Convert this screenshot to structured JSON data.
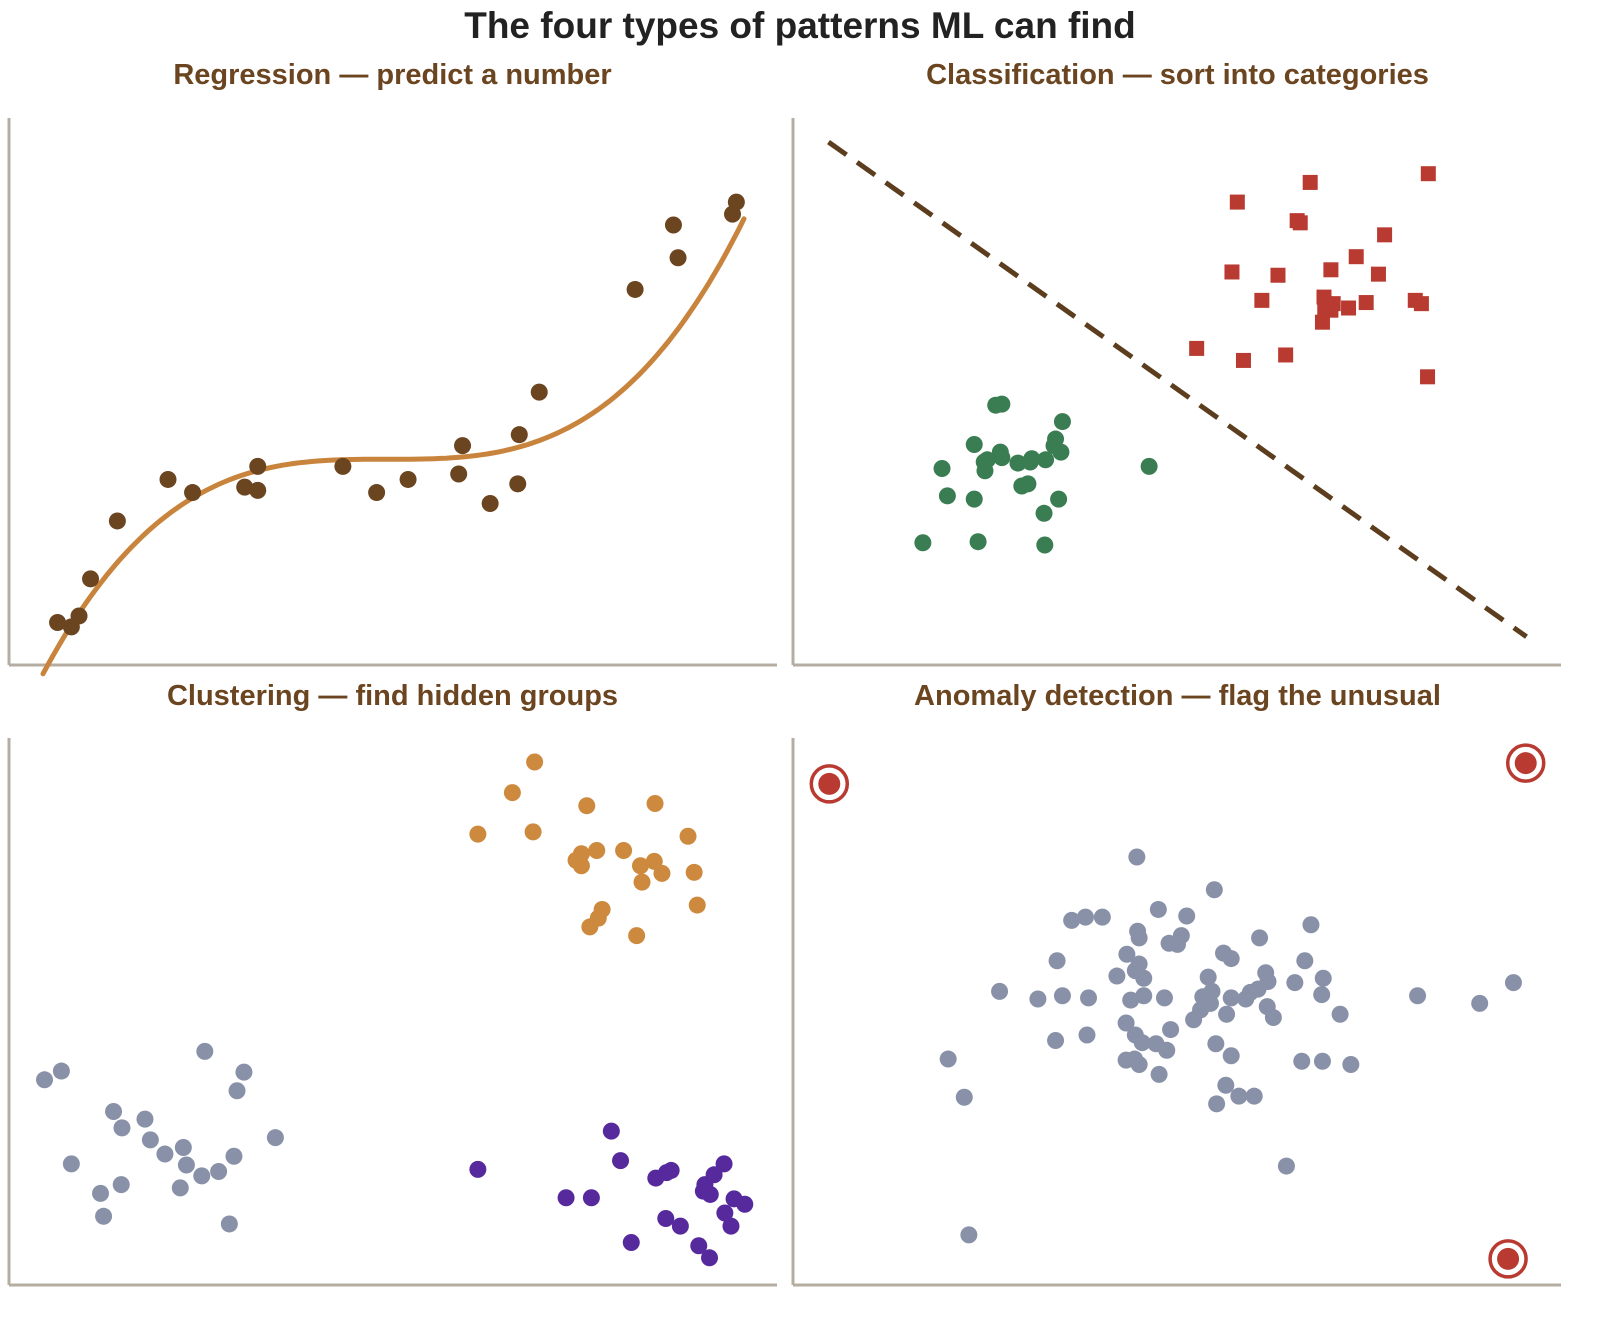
{
  "suptitle": "The four types of patterns ML can find",
  "colors": {
    "axis": "#b5aca2",
    "title_text": "#6b4420",
    "suptitle_text": "#222222",
    "regression_points": "#6b4420",
    "regression_curve": "#c8843c",
    "class_red": "#b83a30",
    "class_green": "#3a7d52",
    "boundary": "#5c3d1e",
    "cluster_gray": "#8891a8",
    "cluster_orange": "#cd8a3e",
    "cluster_purple": "#562a9c",
    "normal": "#8891a8",
    "anomaly": "#b83a30"
  },
  "chart_data": [
    {
      "type": "scatter",
      "title": "Regression — predict a number",
      "xlim": [
        0,
        100
      ],
      "ylim": [
        0,
        100
      ],
      "axis_ticks": false,
      "grid": false,
      "points": [
        [
          6.2,
          7.6
        ],
        [
          8.0,
          6.8
        ],
        [
          9.0,
          8.8
        ],
        [
          10.5,
          15.6
        ],
        [
          14.0,
          26.2
        ],
        [
          20.6,
          33.8
        ],
        [
          23.8,
          31.4
        ],
        [
          30.6,
          32.4
        ],
        [
          32.3,
          31.8
        ],
        [
          32.3,
          36.2
        ],
        [
          43.4,
          36.2
        ],
        [
          47.8,
          31.4
        ],
        [
          51.9,
          33.8
        ],
        [
          58.5,
          34.8
        ],
        [
          59.0,
          40.0
        ],
        [
          62.6,
          29.4
        ],
        [
          66.2,
          33.0
        ],
        [
          66.4,
          42.0
        ],
        [
          69.0,
          49.8
        ],
        [
          81.5,
          68.6
        ],
        [
          86.5,
          80.4
        ],
        [
          87.1,
          74.4
        ],
        [
          94.2,
          82.4
        ],
        [
          94.7,
          84.6
        ]
      ],
      "curve": {
        "x_range": [
          4.3,
          95.7
        ],
        "y_of_t": {
          "baseline": 37.5,
          "cubic_coefficient": 41.5,
          "t_from_x": [
            -0.982,
            1.02
          ]
        }
      }
    },
    {
      "type": "scatter",
      "title": "Classification — sort into categories",
      "xlim": [
        0,
        100
      ],
      "ylim": [
        0,
        100
      ],
      "axis_ticks": false,
      "grid": false,
      "series": [
        {
          "marker": "square",
          "points": [
            [
              57.8,
              84.6
            ],
            [
              67.3,
              88.2
            ],
            [
              65.6,
              81.2
            ],
            [
              66.0,
              80.8
            ],
            [
              82.7,
              89.8
            ],
            [
              77.0,
              78.6
            ],
            [
              57.1,
              71.8
            ],
            [
              63.1,
              71.2
            ],
            [
              70.0,
              72.2
            ],
            [
              73.3,
              74.6
            ],
            [
              76.2,
              71.4
            ],
            [
              61.0,
              66.6
            ],
            [
              69.1,
              67.2
            ],
            [
              69.2,
              65.2
            ],
            [
              70.0,
              64.8
            ],
            [
              70.3,
              66.0
            ],
            [
              72.3,
              65.2
            ],
            [
              74.6,
              66.2
            ],
            [
              81.0,
              66.6
            ],
            [
              81.8,
              66.0
            ],
            [
              68.9,
              62.6
            ],
            [
              52.5,
              57.8
            ],
            [
              58.6,
              55.6
            ],
            [
              64.1,
              56.6
            ],
            [
              82.6,
              52.6
            ]
          ]
        },
        {
          "marker": "circle",
          "points": [
            [
              26.3,
              47.4
            ],
            [
              27.1,
              47.6
            ],
            [
              35.0,
              44.4
            ],
            [
              34.1,
              41.2
            ],
            [
              33.9,
              40.0
            ],
            [
              24.8,
              37.0
            ],
            [
              25.2,
              37.4
            ],
            [
              34.8,
              38.8
            ],
            [
              23.5,
              40.2
            ],
            [
              26.9,
              38.8
            ],
            [
              30.8,
              37.0
            ],
            [
              27.1,
              37.8
            ],
            [
              32.8,
              37.4
            ],
            [
              31.0,
              37.6
            ],
            [
              29.2,
              36.8
            ],
            [
              24.9,
              35.4
            ],
            [
              19.3,
              35.8
            ],
            [
              29.7,
              32.6
            ],
            [
              30.5,
              33.0
            ],
            [
              20.0,
              30.8
            ],
            [
              23.5,
              30.2
            ],
            [
              34.5,
              30.2
            ],
            [
              32.6,
              27.6
            ],
            [
              16.8,
              22.2
            ],
            [
              24.0,
              22.4
            ],
            [
              32.7,
              21.8
            ],
            [
              46.3,
              36.2
            ]
          ]
        }
      ],
      "boundary": {
        "style": "dashed",
        "from": [
          4.5,
          95.6
        ],
        "to": [
          95.5,
          5.0
        ]
      }
    },
    {
      "type": "scatter",
      "title": "Clustering — find hidden groups",
      "xlim": [
        0,
        100
      ],
      "ylim": [
        0,
        100
      ],
      "axis_ticks": false,
      "grid": false,
      "series": [
        {
          "points": [
            [
              4.5,
              37.4
            ],
            [
              6.7,
              39.0
            ],
            [
              25.4,
              42.6
            ],
            [
              30.5,
              38.8
            ],
            [
              29.6,
              35.4
            ],
            [
              13.5,
              31.6
            ],
            [
              17.6,
              30.2
            ],
            [
              14.6,
              28.6
            ],
            [
              18.3,
              26.4
            ],
            [
              22.6,
              25.0
            ],
            [
              8.0,
              22.0
            ],
            [
              20.2,
              23.8
            ],
            [
              29.2,
              23.4
            ],
            [
              34.6,
              26.8
            ],
            [
              23.0,
              21.8
            ],
            [
              25.0,
              19.8
            ],
            [
              27.2,
              20.6
            ],
            [
              14.5,
              18.2
            ],
            [
              22.2,
              17.6
            ],
            [
              11.8,
              16.6
            ],
            [
              12.2,
              12.4
            ],
            [
              28.6,
              11.0
            ]
          ]
        },
        {
          "points": [
            [
              68.4,
              95.6
            ],
            [
              65.5,
              90.0
            ],
            [
              75.2,
              87.6
            ],
            [
              84.1,
              88.0
            ],
            [
              61.0,
              82.4
            ],
            [
              68.2,
              82.8
            ],
            [
              88.4,
              82.0
            ],
            [
              76.5,
              79.4
            ],
            [
              80.0,
              79.4
            ],
            [
              74.5,
              78.8
            ],
            [
              73.8,
              77.6
            ],
            [
              74.5,
              76.6
            ],
            [
              84.0,
              77.4
            ],
            [
              82.2,
              76.6
            ],
            [
              85.0,
              75.2
            ],
            [
              89.2,
              75.4
            ],
            [
              82.4,
              73.6
            ],
            [
              89.6,
              69.4
            ],
            [
              77.2,
              68.6
            ],
            [
              76.7,
              67.0
            ],
            [
              75.6,
              65.4
            ],
            [
              81.7,
              63.8
            ]
          ]
        },
        {
          "points": [
            [
              78.4,
              28.0
            ],
            [
              79.6,
              22.6
            ],
            [
              61.0,
              21.0
            ],
            [
              86.2,
              20.8
            ],
            [
              93.1,
              22.0
            ],
            [
              85.6,
              20.4
            ],
            [
              84.2,
              19.4
            ],
            [
              91.8,
              20.0
            ],
            [
              90.6,
              18.2
            ],
            [
              94.4,
              15.6
            ],
            [
              90.4,
              17.0
            ],
            [
              91.3,
              16.4
            ],
            [
              93.2,
              13.0
            ],
            [
              72.5,
              15.8
            ],
            [
              75.8,
              15.8
            ],
            [
              85.5,
              12.0
            ],
            [
              95.8,
              14.6
            ],
            [
              87.4,
              10.6
            ],
            [
              94.0,
              10.6
            ],
            [
              81.0,
              7.6
            ],
            [
              89.8,
              7.0
            ],
            [
              91.2,
              4.8
            ]
          ]
        }
      ]
    },
    {
      "type": "scatter",
      "title": "Anomaly detection — flag the unusual",
      "xlim": [
        0,
        100
      ],
      "ylim": [
        0,
        100
      ],
      "axis_ticks": false,
      "grid": false,
      "series": [
        {
          "name": "",
          "points": [
            [
              44.7,
              78.2
            ],
            [
              54.8,
              72.2
            ],
            [
              47.5,
              68.6
            ],
            [
              36.2,
              66.6
            ],
            [
              38.0,
              67.2
            ],
            [
              40.2,
              67.2
            ],
            [
              51.2,
              67.4
            ],
            [
              44.8,
              64.6
            ],
            [
              45.0,
              63.4
            ],
            [
              50.5,
              63.8
            ],
            [
              48.9,
              62.4
            ],
            [
              50.0,
              62.2
            ],
            [
              67.4,
              65.8
            ],
            [
              56.0,
              60.6
            ],
            [
              57.0,
              59.6
            ],
            [
              60.7,
              63.4
            ],
            [
              66.6,
              59.2
            ],
            [
              69.0,
              56.0
            ],
            [
              43.4,
              60.4
            ],
            [
              45.0,
              58.6
            ],
            [
              42.1,
              56.4
            ],
            [
              34.3,
              59.2
            ],
            [
              44.5,
              57.4
            ],
            [
              45.6,
              56.0
            ],
            [
              54.0,
              56.2
            ],
            [
              61.5,
              57.0
            ],
            [
              61.8,
              55.4
            ],
            [
              65.3,
              55.2
            ],
            [
              35.0,
              52.8
            ],
            [
              38.4,
              52.4
            ],
            [
              43.9,
              52.0
            ],
            [
              45.6,
              52.8
            ],
            [
              48.3,
              52.4
            ],
            [
              53.3,
              52.6
            ],
            [
              54.5,
              53.6
            ],
            [
              54.3,
              51.4
            ],
            [
              57.0,
              52.4
            ],
            [
              59.5,
              53.4
            ],
            [
              60.5,
              54.0
            ],
            [
              58.9,
              52.2
            ],
            [
              53.0,
              50.2
            ],
            [
              61.7,
              50.8
            ],
            [
              62.5,
              48.8
            ],
            [
              56.4,
              49.4
            ],
            [
              52.1,
              48.4
            ],
            [
              71.2,
              49.4
            ],
            [
              81.3,
              52.8
            ],
            [
              89.4,
              51.4
            ],
            [
              68.8,
              53.0
            ],
            [
              31.8,
              52.2
            ],
            [
              26.8,
              53.6
            ],
            [
              38.2,
              45.6
            ],
            [
              44.5,
              45.6
            ],
            [
              43.3,
              47.8
            ],
            [
              49.1,
              46.6
            ],
            [
              34.1,
              44.6
            ],
            [
              45.4,
              44.2
            ],
            [
              47.2,
              44.0
            ],
            [
              48.6,
              42.8
            ],
            [
              45.0,
              40.2
            ],
            [
              55.0,
              44.0
            ],
            [
              57.0,
              41.8
            ],
            [
              44.4,
              41.2
            ],
            [
              43.3,
              41.0
            ],
            [
              47.6,
              38.4
            ],
            [
              66.2,
              40.8
            ],
            [
              68.9,
              40.8
            ],
            [
              72.6,
              40.2
            ],
            [
              20.1,
              41.2
            ],
            [
              22.2,
              34.2
            ],
            [
              56.3,
              36.4
            ],
            [
              58.0,
              34.4
            ],
            [
              60.0,
              34.4
            ],
            [
              55.1,
              33.0
            ],
            [
              93.8,
              55.2
            ],
            [
              64.2,
              21.6
            ],
            [
              22.8,
              9.0
            ]
          ]
        },
        {
          "name": "",
          "marker": "ringed",
          "points": [
            [
              4.6,
              91.6
            ],
            [
              95.4,
              95.4
            ],
            [
              93.1,
              4.6
            ]
          ]
        }
      ]
    }
  ]
}
